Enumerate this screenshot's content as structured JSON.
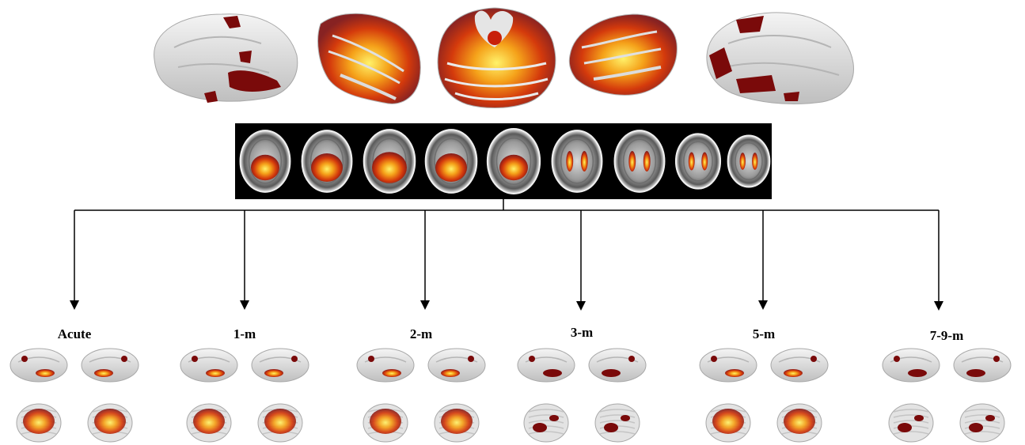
{
  "timepoints": [
    {
      "id": "acute",
      "label": "Acute"
    },
    {
      "id": "1m",
      "label": "1-m"
    },
    {
      "id": "2m",
      "label": "2-m"
    },
    {
      "id": "3m",
      "label": "3-m"
    },
    {
      "id": "5m",
      "label": "5-m"
    },
    {
      "id": "7-9m",
      "label": "7-9-m"
    }
  ],
  "colors": {
    "cortex": "#e6e6e6",
    "cortex_shadow": "#bdbdbd",
    "activation_dark": "#7a0a0a",
    "activation_red": "#c8200a",
    "activation_orange": "#f07a10",
    "activation_yellow": "#f7e64a",
    "slice_background": "#000000",
    "connector": "#000000"
  },
  "icons": [
    "brain-surface-render",
    "cerebellum-render",
    "axial-mri-slice",
    "arrow-down-icon"
  ]
}
